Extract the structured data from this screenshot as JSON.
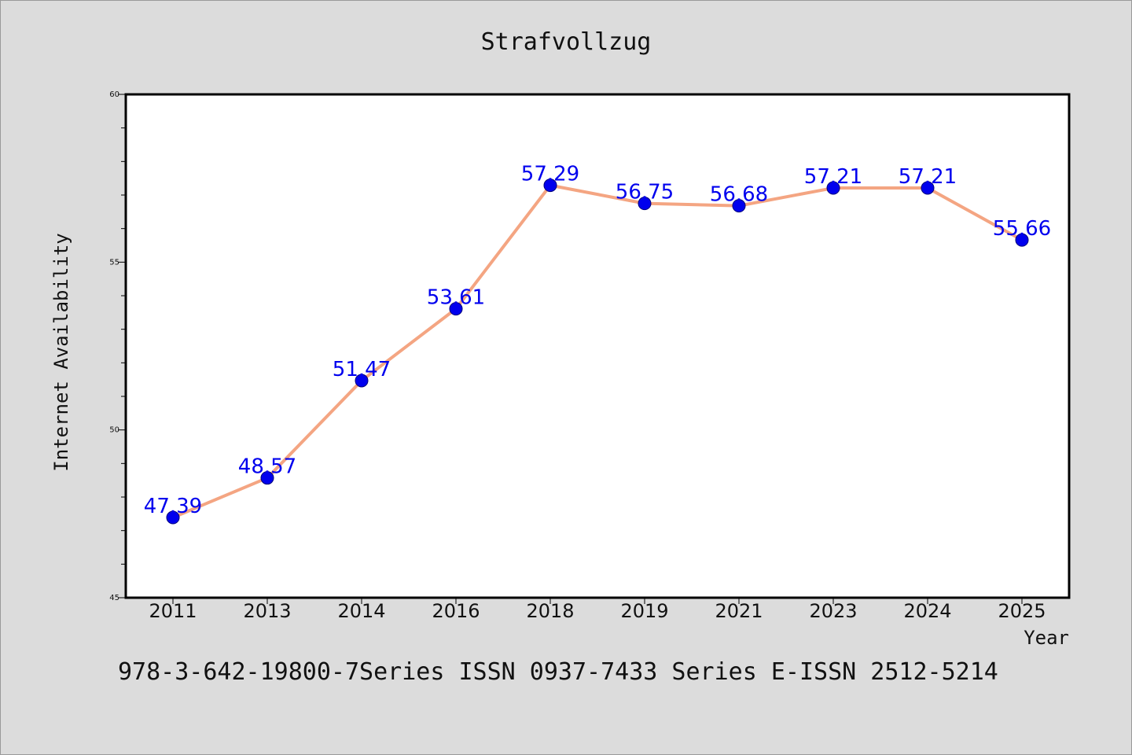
{
  "chart_data": {
    "type": "line",
    "title": "Strafvollzug",
    "xlabel": "Year",
    "ylabel": "Internet Availability",
    "categories": [
      "2011",
      "2013",
      "2014",
      "2016",
      "2018",
      "2019",
      "2021",
      "2023",
      "2024",
      "2025"
    ],
    "series": [
      {
        "values": [
          47.39,
          48.57,
          51.47,
          53.61,
          57.29,
          56.75,
          56.68,
          57.21,
          57.21,
          55.66
        ],
        "data_labels": [
          "47.39",
          "48.57",
          "51.47",
          "53.61",
          "57.29",
          "56.75",
          "56.68",
          "57.21",
          "57.21",
          "55.66"
        ],
        "line_color": "#f4a582",
        "marker_color": "#0000ee"
      }
    ],
    "ylim": [
      45,
      60
    ],
    "yticks": [
      45,
      50,
      55,
      60
    ],
    "ytick_labels": [
      "45",
      "50",
      "55",
      "60"
    ],
    "grid": false,
    "legend": "none",
    "caption": "978-3-642-19800-7Series ISSN 0937-7433 Series E-ISSN 2512-5214"
  }
}
